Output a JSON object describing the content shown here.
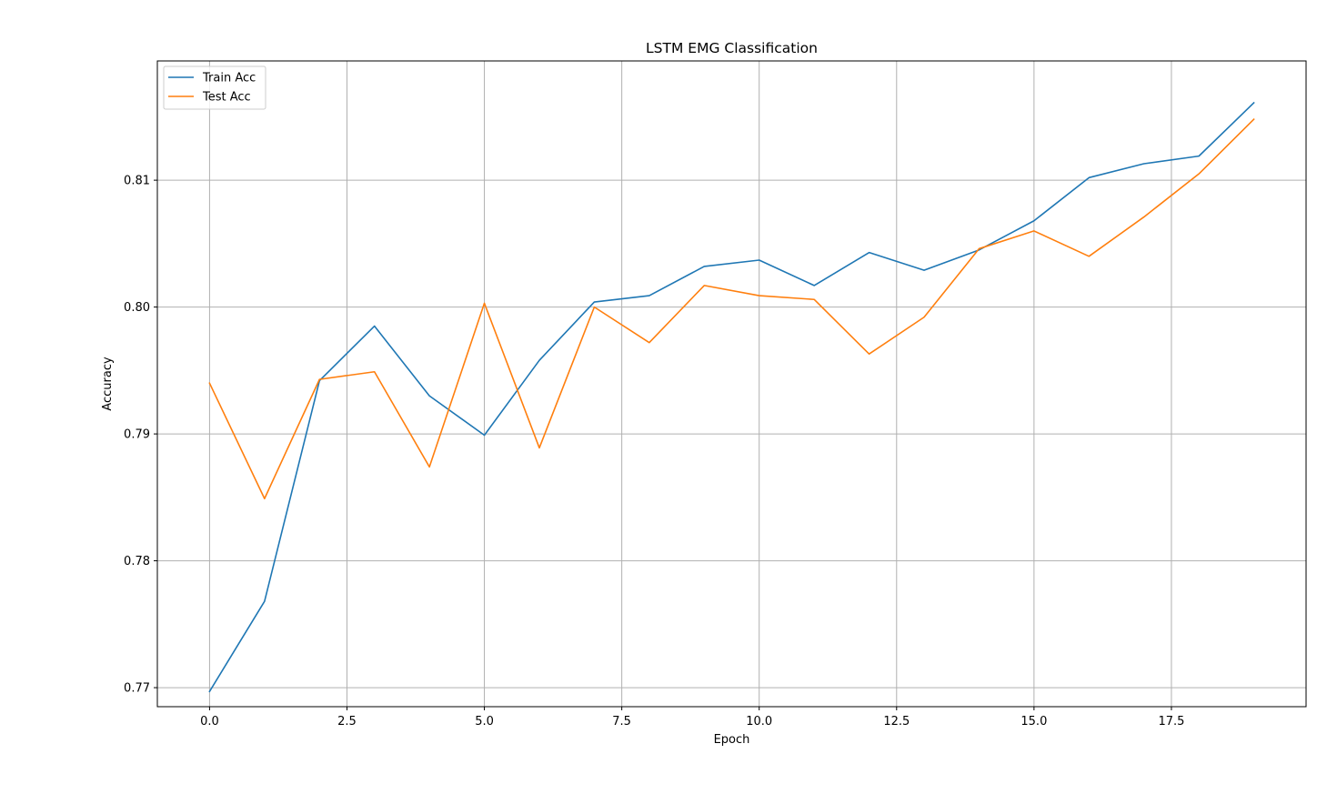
{
  "chart_data": {
    "type": "line",
    "title": "LSTM EMG Classification",
    "xlabel": "Epoch",
    "ylabel": "Accuracy",
    "x": [
      0,
      1,
      2,
      3,
      4,
      5,
      6,
      7,
      8,
      9,
      10,
      11,
      12,
      13,
      14,
      15,
      16,
      17,
      18,
      19
    ],
    "xlim": [
      -0.95,
      19.95
    ],
    "ylim": [
      0.7685,
      0.8194
    ],
    "xticks": [
      0.0,
      2.5,
      5.0,
      7.5,
      10.0,
      12.5,
      15.0,
      17.5
    ],
    "xtick_labels": [
      "0.0",
      "2.5",
      "5.0",
      "7.5",
      "10.0",
      "12.5",
      "15.0",
      "17.5"
    ],
    "yticks": [
      0.77,
      0.78,
      0.79,
      0.8,
      0.81
    ],
    "ytick_labels": [
      "0.77",
      "0.78",
      "0.79",
      "0.80",
      "0.81"
    ],
    "grid": true,
    "legend_position": "upper-left",
    "series": [
      {
        "name": "Train Acc",
        "color": "#1f77b4",
        "values": [
          0.7697,
          0.7768,
          0.7942,
          0.7985,
          0.793,
          0.7899,
          0.7958,
          0.8004,
          0.8009,
          0.8032,
          0.8037,
          0.8017,
          0.8043,
          0.8029,
          0.8045,
          0.8068,
          0.8102,
          0.8113,
          0.8119,
          0.8161
        ]
      },
      {
        "name": "Test Acc",
        "color": "#ff7f0e",
        "values": [
          0.794,
          0.7849,
          0.7943,
          0.7949,
          0.7874,
          0.8003,
          0.7889,
          0.8,
          0.7972,
          0.8017,
          0.8009,
          0.8006,
          0.7963,
          0.7992,
          0.8046,
          0.806,
          0.804,
          0.8071,
          0.8105,
          0.8148
        ]
      }
    ]
  }
}
